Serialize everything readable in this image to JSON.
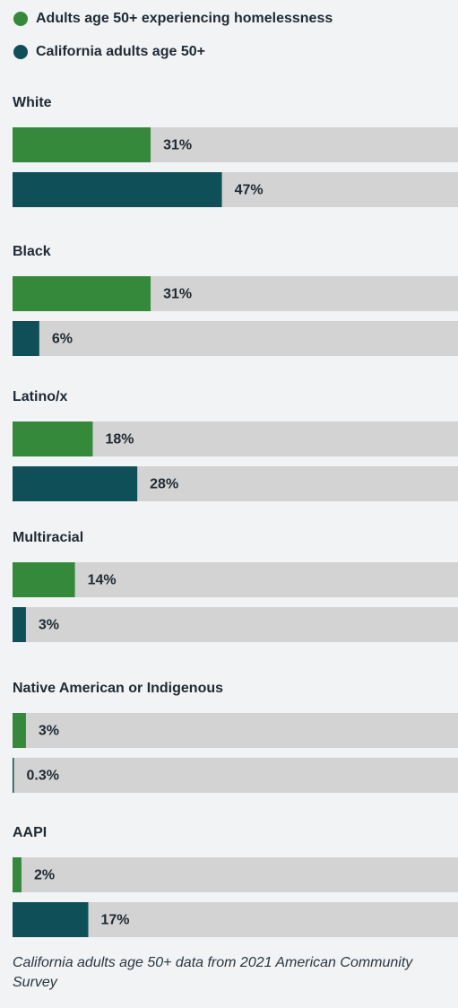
{
  "chart_data": {
    "type": "bar",
    "orientation": "horizontal",
    "categories": [
      "White",
      "Black",
      "Latino/x",
      "Multiracial",
      "Native American or Indigenous",
      "AAPI"
    ],
    "series": [
      {
        "name": "Adults age 50+ experiencing homelessness",
        "color": "#34893a",
        "values": [
          31,
          31,
          18,
          14,
          3,
          2
        ],
        "value_labels": [
          "31%",
          "31%",
          "18%",
          "14%",
          "3%",
          "2%"
        ]
      },
      {
        "name": "California adults age 50+",
        "color": "#0f4f57",
        "values": [
          47,
          6,
          28,
          3,
          0.3,
          17
        ],
        "value_labels": [
          "47%",
          "6%",
          "28%",
          "3%",
          "0.3%",
          "17%"
        ]
      }
    ],
    "xlim": [
      0,
      100
    ],
    "note": "California adults age 50+ data from 2021 American Community Survey"
  }
}
